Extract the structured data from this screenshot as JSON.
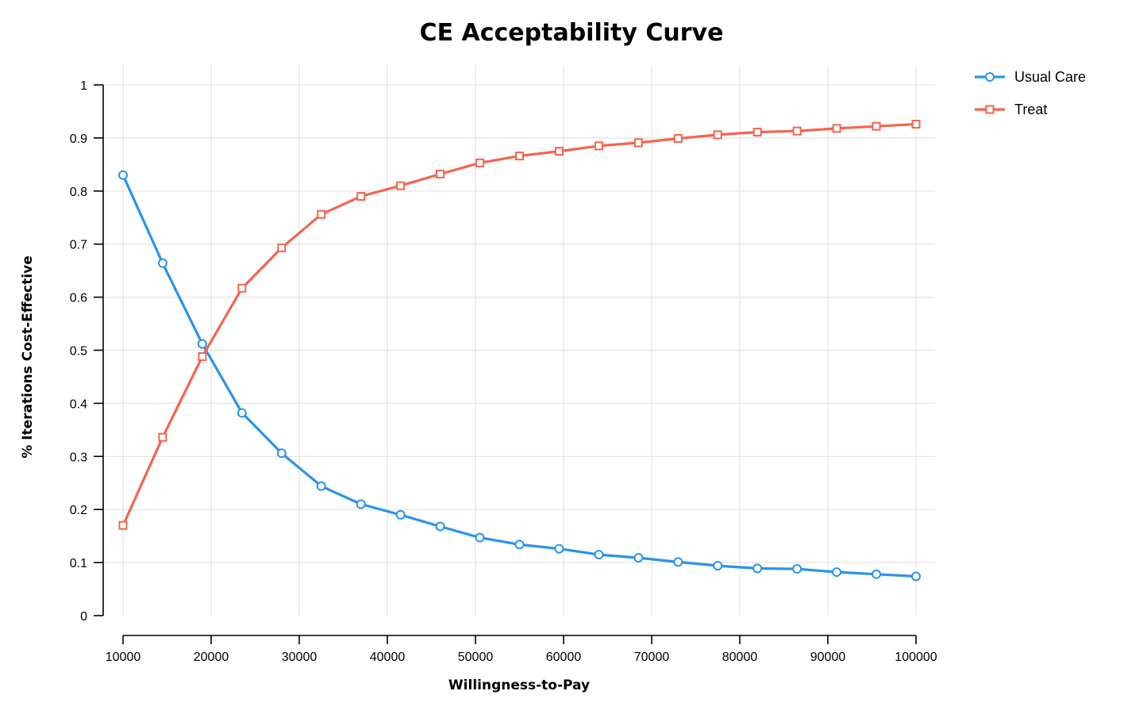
{
  "chart_data": {
    "type": "line",
    "title": "CE Acceptability Curve",
    "xlabel": "Willingness-to-Pay",
    "ylabel": "% Iterations Cost-Effective",
    "xlim": [
      10000,
      100000
    ],
    "ylim": [
      0,
      1
    ],
    "x_ticks": [
      10000,
      20000,
      30000,
      40000,
      50000,
      60000,
      70000,
      80000,
      90000,
      100000
    ],
    "y_ticks": [
      0,
      0.1,
      0.2,
      0.3,
      0.4,
      0.5,
      0.6,
      0.7,
      0.8,
      0.9,
      1
    ],
    "grid": true,
    "legend_position": "top-right",
    "x": [
      10000,
      14500,
      19000,
      23500,
      28000,
      32500,
      37000,
      41500,
      46000,
      50500,
      55000,
      59500,
      64000,
      68500,
      73000,
      77500,
      82000,
      86500,
      91000,
      95500,
      100000
    ],
    "series": [
      {
        "name": "Usual Care",
        "color": "#2a93ec",
        "marker": "circle",
        "values": [
          0.83,
          0.664,
          0.512,
          0.382,
          0.306,
          0.244,
          0.21,
          0.19,
          0.168,
          0.147,
          0.134,
          0.126,
          0.115,
          0.109,
          0.101,
          0.094,
          0.089,
          0.088,
          0.082,
          0.078,
          0.074
        ]
      },
      {
        "name": "Treat",
        "color": "#f4654d",
        "marker": "square",
        "values": [
          0.17,
          0.336,
          0.488,
          0.617,
          0.693,
          0.756,
          0.79,
          0.81,
          0.832,
          0.853,
          0.866,
          0.875,
          0.885,
          0.891,
          0.899,
          0.906,
          0.911,
          0.913,
          0.918,
          0.922,
          0.926
        ]
      }
    ]
  }
}
